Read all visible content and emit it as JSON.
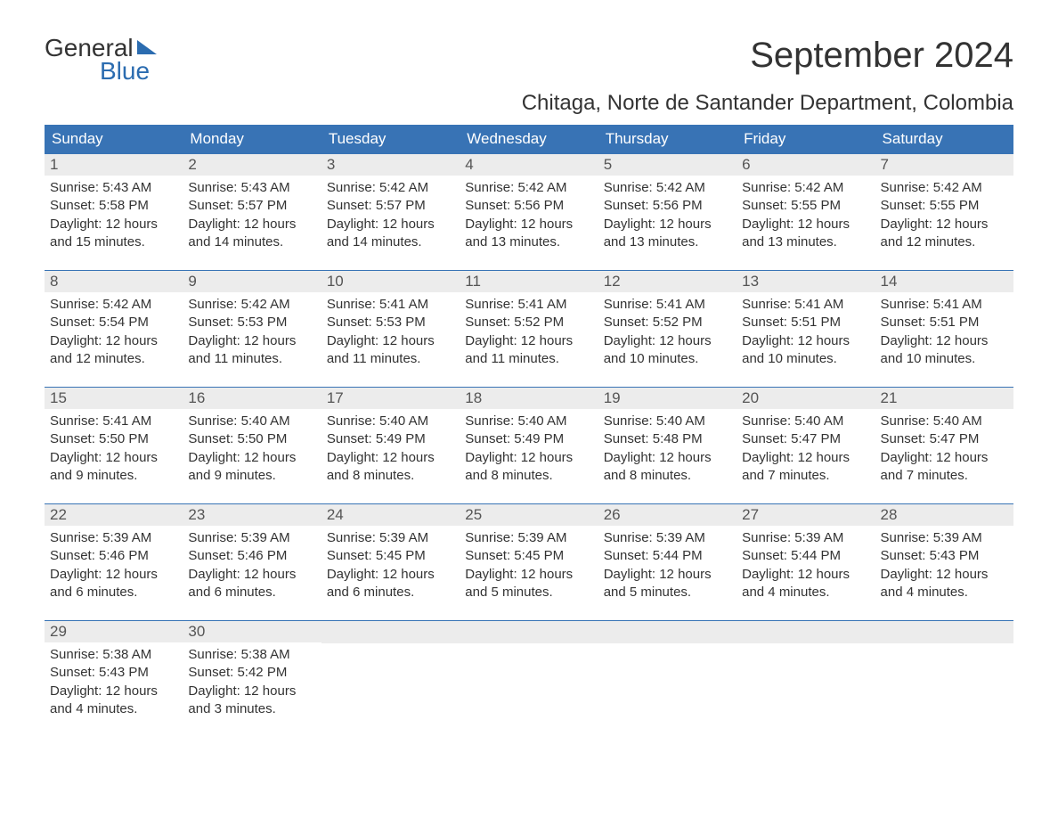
{
  "logo": {
    "top_text": "General",
    "bottom_text": "Blue",
    "brand_color": "#2b6cb0",
    "text_color": "#333333"
  },
  "title": "September 2024",
  "location": "Chitaga, Norte de Santander Department, Colombia",
  "colors": {
    "header_bg": "#3873b5",
    "header_text": "#ffffff",
    "day_number_bg": "#ececec",
    "day_number_text": "#555555",
    "body_text": "#333333",
    "week_border": "#3873b5",
    "page_bg": "#ffffff"
  },
  "typography": {
    "title_size_pt": 30,
    "location_size_pt": 18,
    "header_size_pt": 13,
    "body_size_pt": 11
  },
  "layout": {
    "columns": 7,
    "rows": 5
  },
  "day_names": [
    "Sunday",
    "Monday",
    "Tuesday",
    "Wednesday",
    "Thursday",
    "Friday",
    "Saturday"
  ],
  "weeks": [
    [
      {
        "num": "1",
        "sunrise": "Sunrise: 5:43 AM",
        "sunset": "Sunset: 5:58 PM",
        "daylight1": "Daylight: 12 hours",
        "daylight2": "and 15 minutes."
      },
      {
        "num": "2",
        "sunrise": "Sunrise: 5:43 AM",
        "sunset": "Sunset: 5:57 PM",
        "daylight1": "Daylight: 12 hours",
        "daylight2": "and 14 minutes."
      },
      {
        "num": "3",
        "sunrise": "Sunrise: 5:42 AM",
        "sunset": "Sunset: 5:57 PM",
        "daylight1": "Daylight: 12 hours",
        "daylight2": "and 14 minutes."
      },
      {
        "num": "4",
        "sunrise": "Sunrise: 5:42 AM",
        "sunset": "Sunset: 5:56 PM",
        "daylight1": "Daylight: 12 hours",
        "daylight2": "and 13 minutes."
      },
      {
        "num": "5",
        "sunrise": "Sunrise: 5:42 AM",
        "sunset": "Sunset: 5:56 PM",
        "daylight1": "Daylight: 12 hours",
        "daylight2": "and 13 minutes."
      },
      {
        "num": "6",
        "sunrise": "Sunrise: 5:42 AM",
        "sunset": "Sunset: 5:55 PM",
        "daylight1": "Daylight: 12 hours",
        "daylight2": "and 13 minutes."
      },
      {
        "num": "7",
        "sunrise": "Sunrise: 5:42 AM",
        "sunset": "Sunset: 5:55 PM",
        "daylight1": "Daylight: 12 hours",
        "daylight2": "and 12 minutes."
      }
    ],
    [
      {
        "num": "8",
        "sunrise": "Sunrise: 5:42 AM",
        "sunset": "Sunset: 5:54 PM",
        "daylight1": "Daylight: 12 hours",
        "daylight2": "and 12 minutes."
      },
      {
        "num": "9",
        "sunrise": "Sunrise: 5:42 AM",
        "sunset": "Sunset: 5:53 PM",
        "daylight1": "Daylight: 12 hours",
        "daylight2": "and 11 minutes."
      },
      {
        "num": "10",
        "sunrise": "Sunrise: 5:41 AM",
        "sunset": "Sunset: 5:53 PM",
        "daylight1": "Daylight: 12 hours",
        "daylight2": "and 11 minutes."
      },
      {
        "num": "11",
        "sunrise": "Sunrise: 5:41 AM",
        "sunset": "Sunset: 5:52 PM",
        "daylight1": "Daylight: 12 hours",
        "daylight2": "and 11 minutes."
      },
      {
        "num": "12",
        "sunrise": "Sunrise: 5:41 AM",
        "sunset": "Sunset: 5:52 PM",
        "daylight1": "Daylight: 12 hours",
        "daylight2": "and 10 minutes."
      },
      {
        "num": "13",
        "sunrise": "Sunrise: 5:41 AM",
        "sunset": "Sunset: 5:51 PM",
        "daylight1": "Daylight: 12 hours",
        "daylight2": "and 10 minutes."
      },
      {
        "num": "14",
        "sunrise": "Sunrise: 5:41 AM",
        "sunset": "Sunset: 5:51 PM",
        "daylight1": "Daylight: 12 hours",
        "daylight2": "and 10 minutes."
      }
    ],
    [
      {
        "num": "15",
        "sunrise": "Sunrise: 5:41 AM",
        "sunset": "Sunset: 5:50 PM",
        "daylight1": "Daylight: 12 hours",
        "daylight2": "and 9 minutes."
      },
      {
        "num": "16",
        "sunrise": "Sunrise: 5:40 AM",
        "sunset": "Sunset: 5:50 PM",
        "daylight1": "Daylight: 12 hours",
        "daylight2": "and 9 minutes."
      },
      {
        "num": "17",
        "sunrise": "Sunrise: 5:40 AM",
        "sunset": "Sunset: 5:49 PM",
        "daylight1": "Daylight: 12 hours",
        "daylight2": "and 8 minutes."
      },
      {
        "num": "18",
        "sunrise": "Sunrise: 5:40 AM",
        "sunset": "Sunset: 5:49 PM",
        "daylight1": "Daylight: 12 hours",
        "daylight2": "and 8 minutes."
      },
      {
        "num": "19",
        "sunrise": "Sunrise: 5:40 AM",
        "sunset": "Sunset: 5:48 PM",
        "daylight1": "Daylight: 12 hours",
        "daylight2": "and 8 minutes."
      },
      {
        "num": "20",
        "sunrise": "Sunrise: 5:40 AM",
        "sunset": "Sunset: 5:47 PM",
        "daylight1": "Daylight: 12 hours",
        "daylight2": "and 7 minutes."
      },
      {
        "num": "21",
        "sunrise": "Sunrise: 5:40 AM",
        "sunset": "Sunset: 5:47 PM",
        "daylight1": "Daylight: 12 hours",
        "daylight2": "and 7 minutes."
      }
    ],
    [
      {
        "num": "22",
        "sunrise": "Sunrise: 5:39 AM",
        "sunset": "Sunset: 5:46 PM",
        "daylight1": "Daylight: 12 hours",
        "daylight2": "and 6 minutes."
      },
      {
        "num": "23",
        "sunrise": "Sunrise: 5:39 AM",
        "sunset": "Sunset: 5:46 PM",
        "daylight1": "Daylight: 12 hours",
        "daylight2": "and 6 minutes."
      },
      {
        "num": "24",
        "sunrise": "Sunrise: 5:39 AM",
        "sunset": "Sunset: 5:45 PM",
        "daylight1": "Daylight: 12 hours",
        "daylight2": "and 6 minutes."
      },
      {
        "num": "25",
        "sunrise": "Sunrise: 5:39 AM",
        "sunset": "Sunset: 5:45 PM",
        "daylight1": "Daylight: 12 hours",
        "daylight2": "and 5 minutes."
      },
      {
        "num": "26",
        "sunrise": "Sunrise: 5:39 AM",
        "sunset": "Sunset: 5:44 PM",
        "daylight1": "Daylight: 12 hours",
        "daylight2": "and 5 minutes."
      },
      {
        "num": "27",
        "sunrise": "Sunrise: 5:39 AM",
        "sunset": "Sunset: 5:44 PM",
        "daylight1": "Daylight: 12 hours",
        "daylight2": "and 4 minutes."
      },
      {
        "num": "28",
        "sunrise": "Sunrise: 5:39 AM",
        "sunset": "Sunset: 5:43 PM",
        "daylight1": "Daylight: 12 hours",
        "daylight2": "and 4 minutes."
      }
    ],
    [
      {
        "num": "29",
        "sunrise": "Sunrise: 5:38 AM",
        "sunset": "Sunset: 5:43 PM",
        "daylight1": "Daylight: 12 hours",
        "daylight2": "and 4 minutes."
      },
      {
        "num": "30",
        "sunrise": "Sunrise: 5:38 AM",
        "sunset": "Sunset: 5:42 PM",
        "daylight1": "Daylight: 12 hours",
        "daylight2": "and 3 minutes."
      },
      {
        "empty": true
      },
      {
        "empty": true
      },
      {
        "empty": true
      },
      {
        "empty": true
      },
      {
        "empty": true
      }
    ]
  ]
}
